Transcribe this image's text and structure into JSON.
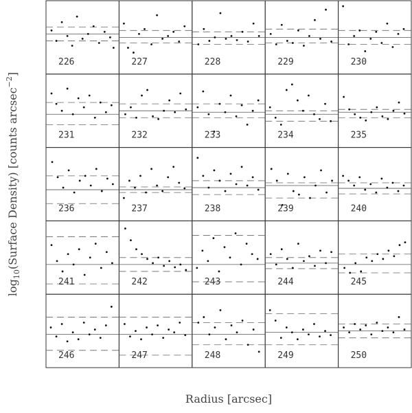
{
  "figure": {
    "xlabel": "Radius [arcsec]",
    "ylabel": [
      "log",
      "10",
      "(Surface Density) [counts arcsec",
      "−2",
      "]"
    ]
  },
  "chart_data": [
    {
      "type": "scatter",
      "title": "226",
      "x": [
        5,
        12,
        20,
        28,
        35,
        42,
        50,
        58,
        66,
        74,
        82,
        90,
        95
      ],
      "y": [
        60,
        45,
        72,
        52,
        38,
        80,
        48,
        55,
        66,
        42,
        58,
        50,
        35
      ],
      "xlim": [
        0,
        100
      ],
      "ylim": [
        0,
        100
      ],
      "mean": 55,
      "dashed": [
        45,
        65
      ]
    },
    {
      "type": "scatter",
      "title": "227",
      "x": [
        4,
        10,
        18,
        26,
        34,
        44,
        52,
        60,
        68,
        76,
        84,
        92
      ],
      "y": [
        70,
        35,
        28,
        55,
        62,
        40,
        82,
        48,
        52,
        58,
        44,
        66
      ],
      "xlim": [
        0,
        100
      ],
      "ylim": [
        0,
        100
      ],
      "mean": 50,
      "dashed": [
        42,
        60
      ]
    },
    {
      "type": "scatter",
      "title": "228",
      "x": [
        6,
        14,
        22,
        30,
        38,
        46,
        54,
        62,
        70,
        78,
        86,
        94
      ],
      "y": [
        40,
        62,
        45,
        50,
        85,
        48,
        52,
        46,
        58,
        44,
        70,
        52
      ],
      "xlim": [
        0,
        100
      ],
      "ylim": [
        0,
        100
      ],
      "mean": 50,
      "dashed": [
        40,
        58
      ]
    },
    {
      "type": "scatter",
      "title": "229",
      "x": [
        5,
        13,
        21,
        29,
        37,
        45,
        53,
        61,
        69,
        77,
        85,
        93
      ],
      "y": [
        55,
        40,
        68,
        45,
        42,
        60,
        38,
        52,
        75,
        48,
        90,
        44
      ],
      "xlim": [
        0,
        100
      ],
      "ylim": [
        0,
        100
      ],
      "mean": 50,
      "dashed": [
        42,
        62
      ]
    },
    {
      "type": "scatter",
      "title": "230",
      "x": [
        4,
        12,
        20,
        28,
        36,
        44,
        52,
        60,
        68,
        76,
        84,
        92
      ],
      "y": [
        95,
        40,
        52,
        60,
        30,
        48,
        58,
        42,
        70,
        36,
        55,
        62
      ],
      "xlim": [
        0,
        100
      ],
      "ylim": [
        0,
        100
      ],
      "mean": 50,
      "dashed": [
        40,
        60
      ]
    },
    {
      "type": "scatter",
      "title": "231",
      "x": [
        5,
        12,
        20,
        28,
        36,
        44,
        52,
        60,
        68,
        76,
        84,
        92
      ],
      "y": [
        75,
        60,
        50,
        82,
        45,
        68,
        55,
        72,
        40,
        62,
        48,
        58
      ],
      "xlim": [
        0,
        100
      ],
      "ylim": [
        0,
        100
      ],
      "mean": 45,
      "dashed": [
        30,
        62
      ]
    },
    {
      "type": "scatter",
      "title": "232",
      "x": [
        6,
        14,
        22,
        30,
        38,
        46,
        54,
        62,
        70,
        78,
        86,
        94
      ],
      "y": [
        45,
        55,
        40,
        72,
        80,
        42,
        38,
        50,
        65,
        48,
        75,
        52
      ],
      "xlim": [
        0,
        100
      ],
      "ylim": [
        0,
        100
      ],
      "mean": 50,
      "dashed": [
        40,
        60
      ]
    },
    {
      "type": "scatter",
      "title": "233",
      "x": [
        5,
        13,
        21,
        29,
        37,
        45,
        53,
        61,
        69,
        77,
        85,
        93
      ],
      "y": [
        55,
        78,
        45,
        20,
        60,
        48,
        72,
        42,
        58,
        30,
        50,
        65
      ],
      "xlim": [
        0,
        100
      ],
      "ylim": [
        0,
        100
      ],
      "mean": 48,
      "dashed": [
        40,
        60
      ]
    },
    {
      "type": "scatter",
      "title": "234",
      "x": [
        4,
        12,
        20,
        28,
        36,
        44,
        52,
        60,
        68,
        76,
        84,
        92
      ],
      "y": [
        55,
        40,
        30,
        80,
        88,
        65,
        50,
        72,
        45,
        38,
        60,
        35
      ],
      "xlim": [
        0,
        100
      ],
      "ylim": [
        0,
        100
      ],
      "mean": 45,
      "dashed": [
        35,
        50
      ]
    },
    {
      "type": "scatter",
      "title": "235",
      "x": [
        5,
        13,
        21,
        29,
        37,
        45,
        53,
        61,
        69,
        77,
        85,
        93
      ],
      "y": [
        70,
        52,
        45,
        40,
        36,
        48,
        55,
        42,
        38,
        50,
        62,
        46
      ],
      "xlim": [
        0,
        100
      ],
      "ylim": [
        0,
        100
      ],
      "mean": 48,
      "dashed": [
        40,
        52
      ]
    },
    {
      "type": "scatter",
      "title": "236",
      "x": [
        6,
        14,
        22,
        30,
        38,
        46,
        54,
        62,
        70,
        78,
        86,
        94
      ],
      "y": [
        82,
        60,
        45,
        70,
        38,
        55,
        62,
        48,
        72,
        40,
        58,
        50
      ],
      "xlim": [
        0,
        100
      ],
      "ylim": [
        0,
        100
      ],
      "mean": 42,
      "dashed": [
        22,
        62
      ]
    },
    {
      "type": "scatter",
      "title": "237",
      "x": [
        4,
        12,
        20,
        28,
        36,
        44,
        52,
        60,
        68,
        76,
        84,
        92
      ],
      "y": [
        30,
        55,
        45,
        62,
        38,
        72,
        48,
        40,
        60,
        75,
        52,
        44
      ],
      "xlim": [
        0,
        100
      ],
      "ylim": [
        0,
        100
      ],
      "mean": 42,
      "dashed": [
        38,
        46
      ]
    },
    {
      "type": "scatter",
      "title": "238",
      "x": [
        5,
        13,
        21,
        29,
        37,
        45,
        53,
        61,
        69,
        77,
        85,
        93
      ],
      "y": [
        88,
        62,
        45,
        70,
        55,
        40,
        65,
        50,
        75,
        48,
        60,
        42
      ],
      "xlim": [
        0,
        100
      ],
      "ylim": [
        0,
        100
      ],
      "mean": 45,
      "dashed": [
        35,
        55
      ]
    },
    {
      "type": "scatter",
      "title": "239",
      "x": [
        6,
        14,
        22,
        30,
        38,
        46,
        54,
        62,
        70,
        78,
        86,
        94
      ],
      "y": [
        72,
        55,
        20,
        65,
        40,
        35,
        60,
        30,
        48,
        70,
        38,
        55
      ],
      "xlim": [
        0,
        100
      ],
      "ylim": [
        0,
        100
      ],
      "mean": 48,
      "dashed": [
        30,
        52
      ]
    },
    {
      "type": "scatter",
      "title": "240",
      "x": [
        4,
        12,
        20,
        28,
        36,
        44,
        52,
        60,
        68,
        76,
        84,
        92
      ],
      "y": [
        62,
        55,
        48,
        60,
        42,
        50,
        38,
        58,
        45,
        52,
        40,
        48
      ],
      "xlim": [
        0,
        100
      ],
      "ylim": [
        0,
        100
      ],
      "mean": 44,
      "dashed": [
        36,
        52
      ]
    },
    {
      "type": "scatter",
      "title": "241",
      "x": [
        5,
        13,
        21,
        29,
        37,
        45,
        53,
        61,
        69,
        77,
        85,
        93
      ],
      "y": [
        68,
        45,
        30,
        55,
        40,
        62,
        25,
        50,
        70,
        35,
        58,
        42
      ],
      "xlim": [
        0,
        100
      ],
      "ylim": [
        0,
        100
      ],
      "mean": 40,
      "dashed": [
        12,
        80
      ]
    },
    {
      "type": "scatter",
      "title": "242",
      "x": [
        6,
        14,
        22,
        30,
        38,
        46,
        54,
        62,
        70,
        78,
        86,
        94
      ],
      "y": [
        92,
        75,
        62,
        55,
        48,
        42,
        50,
        38,
        45,
        36,
        40,
        32
      ],
      "xlim": [
        0,
        100
      ],
      "ylim": [
        0,
        100
      ],
      "mean": 40,
      "dashed": [
        30,
        50
      ]
    },
    {
      "type": "scatter",
      "title": "243",
      "x": [
        4,
        12,
        20,
        28,
        36,
        44,
        52,
        60,
        68,
        76,
        84,
        92
      ],
      "y": [
        35,
        60,
        45,
        78,
        30,
        65,
        50,
        85,
        40,
        70,
        55,
        48
      ],
      "xlim": [
        0,
        100
      ],
      "ylim": [
        0,
        100
      ],
      "mean": 40,
      "dashed": [
        15,
        82
      ]
    },
    {
      "type": "scatter",
      "title": "244",
      "x": [
        5,
        13,
        21,
        29,
        37,
        45,
        53,
        61,
        69,
        77,
        85,
        93
      ],
      "y": [
        55,
        40,
        62,
        48,
        35,
        70,
        45,
        52,
        38,
        60,
        42,
        58
      ],
      "xlim": [
        0,
        100
      ],
      "ylim": [
        0,
        100
      ],
      "mean": 42,
      "dashed": [
        34,
        50
      ]
    },
    {
      "type": "scatter",
      "title": "245",
      "x": [
        6,
        14,
        22,
        30,
        38,
        46,
        54,
        62,
        70,
        78,
        86,
        94
      ],
      "y": [
        35,
        28,
        42,
        30,
        50,
        45,
        55,
        48,
        60,
        52,
        68,
        72
      ],
      "xlim": [
        0,
        100
      ],
      "ylim": [
        0,
        100
      ],
      "mean": 40,
      "dashed": [
        28,
        55
      ]
    },
    {
      "type": "scatter",
      "title": "246",
      "x": [
        4,
        12,
        20,
        28,
        36,
        44,
        52,
        60,
        68,
        76,
        84,
        92
      ],
      "y": [
        55,
        42,
        60,
        35,
        48,
        38,
        62,
        45,
        52,
        40,
        58,
        85
      ],
      "xlim": [
        0,
        100
      ],
      "ylim": [
        0,
        100
      ],
      "mean": 45,
      "dashed": [
        22,
        70
      ]
    },
    {
      "type": "scatter",
      "title": "247",
      "x": [
        5,
        13,
        21,
        29,
        37,
        45,
        53,
        61,
        69,
        77,
        85,
        93
      ],
      "y": [
        60,
        42,
        50,
        38,
        55,
        45,
        58,
        40,
        52,
        48,
        62,
        44
      ],
      "xlim": [
        0,
        100
      ],
      "ylim": [
        0,
        100
      ],
      "mean": 45,
      "dashed": [
        15,
        70
      ]
    },
    {
      "type": "scatter",
      "title": "248",
      "x": [
        6,
        14,
        22,
        30,
        38,
        46,
        54,
        62,
        70,
        78,
        86,
        94
      ],
      "y": [
        62,
        70,
        45,
        55,
        80,
        38,
        58,
        48,
        65,
        30,
        52,
        20
      ],
      "xlim": [
        0,
        100
      ],
      "ylim": [
        0,
        100
      ],
      "mean": 45,
      "dashed": [
        30,
        62
      ]
    },
    {
      "type": "scatter",
      "title": "249",
      "x": [
        4,
        12,
        20,
        28,
        36,
        44,
        52,
        60,
        68,
        76,
        84,
        92
      ],
      "y": [
        80,
        65,
        40,
        55,
        48,
        38,
        52,
        45,
        60,
        42,
        50,
        44
      ],
      "xlim": [
        0,
        100
      ],
      "ylim": [
        0,
        100
      ],
      "mean": 48,
      "dashed": [
        30,
        75
      ]
    },
    {
      "type": "scatter",
      "title": "250",
      "x": [
        5,
        13,
        21,
        29,
        37,
        45,
        53,
        61,
        69,
        77,
        85,
        93
      ],
      "y": [
        55,
        48,
        60,
        52,
        58,
        45,
        62,
        50,
        55,
        48,
        70,
        52
      ],
      "xlim": [
        0,
        100
      ],
      "ylim": [
        0,
        100
      ],
      "mean": 50,
      "dashed": [
        40,
        60
      ]
    }
  ]
}
